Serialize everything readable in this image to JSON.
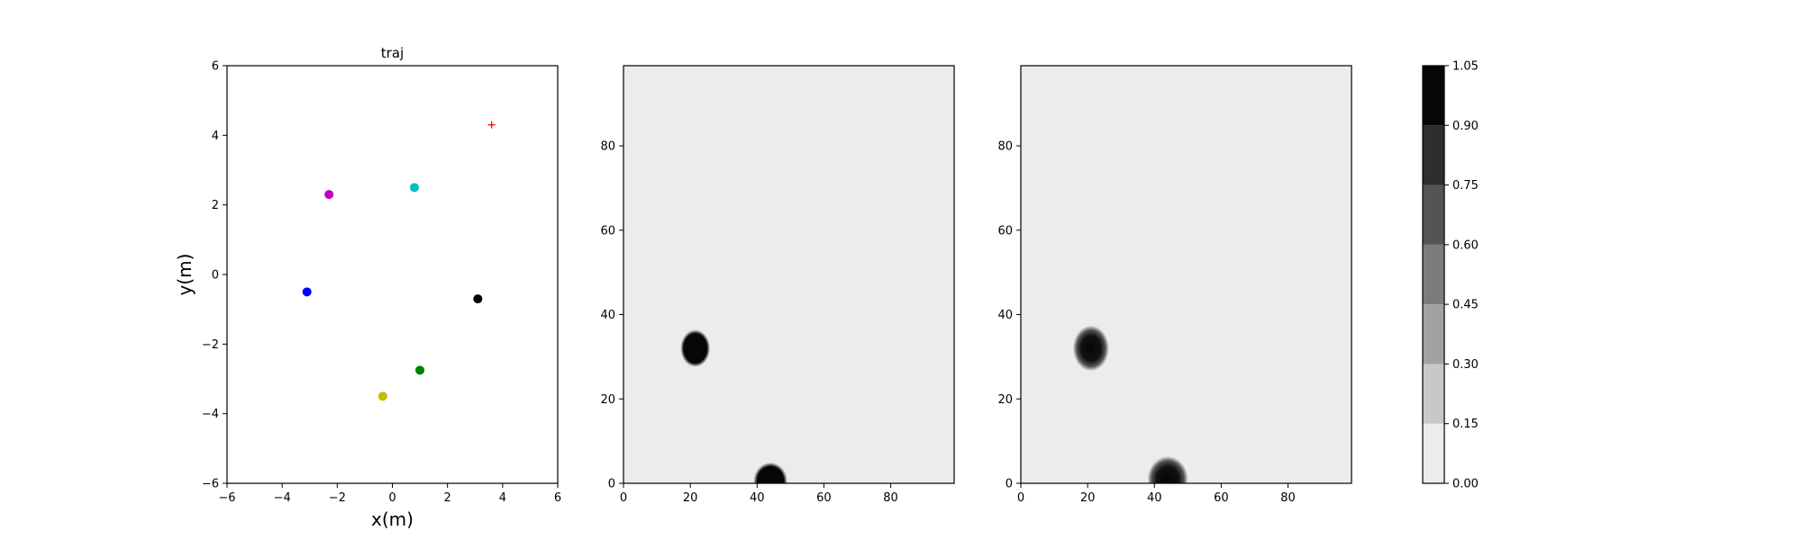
{
  "chart_data": [
    {
      "type": "scatter",
      "title": "traj",
      "xlabel": "x(m)",
      "ylabel": "y(m)",
      "xlim": [
        -6,
        6
      ],
      "ylim": [
        -6,
        6
      ],
      "xticks": [
        -6,
        -4,
        -2,
        0,
        2,
        4,
        6
      ],
      "yticks": [
        -6,
        -4,
        -2,
        0,
        2,
        4,
        6
      ],
      "xtick_labels": [
        "−6",
        "−4",
        "−2",
        "0",
        "2",
        "4",
        "6"
      ],
      "ytick_labels": [
        "−6",
        "−4",
        "−2",
        "0",
        "2",
        "4",
        "6"
      ],
      "grid": false,
      "points": [
        {
          "x": -2.3,
          "y": 2.3,
          "color": "#bf00bf",
          "marker": "circle"
        },
        {
          "x": 0.8,
          "y": 2.5,
          "color": "#00bfbf",
          "marker": "circle"
        },
        {
          "x": -3.1,
          "y": -0.5,
          "color": "#0000ff",
          "marker": "circle"
        },
        {
          "x": 3.1,
          "y": -0.7,
          "color": "#000000",
          "marker": "circle"
        },
        {
          "x": 1.0,
          "y": -2.75,
          "color": "#008000",
          "marker": "circle"
        },
        {
          "x": -0.35,
          "y": -3.5,
          "color": "#bfbf00",
          "marker": "circle"
        },
        {
          "x": 3.6,
          "y": 4.3,
          "color": "#ff0000",
          "marker": "plus"
        }
      ]
    },
    {
      "type": "heatmap",
      "title": "",
      "xlim": [
        0,
        99
      ],
      "ylim": [
        0,
        99
      ],
      "xticks": [
        0,
        20,
        40,
        60,
        80
      ],
      "yticks": [
        0,
        20,
        40,
        60,
        80
      ],
      "xtick_labels": [
        "0",
        "20",
        "40",
        "60",
        "80"
      ],
      "ytick_labels": [
        "0",
        "20",
        "40",
        "60",
        "80"
      ],
      "background_value": 0.0,
      "style": "discrete",
      "blobs": [
        {
          "cx": 21.5,
          "cy": 32,
          "rx": 3.5,
          "ry": 3.5,
          "value": 1.0
        },
        {
          "cx": 44,
          "cy": 0.5,
          "rx": 4,
          "ry": 3.5,
          "value": 1.0
        }
      ]
    },
    {
      "type": "heatmap",
      "title": "",
      "xlim": [
        0,
        99
      ],
      "ylim": [
        0,
        99
      ],
      "xticks": [
        0,
        20,
        40,
        60,
        80
      ],
      "yticks": [
        0,
        20,
        40,
        60,
        80
      ],
      "xtick_labels": [
        "0",
        "20",
        "40",
        "60",
        "80"
      ],
      "ytick_labels": [
        "0",
        "20",
        "40",
        "60",
        "80"
      ],
      "background_value": 0.0,
      "style": "smooth",
      "blobs": [
        {
          "cx": 21,
          "cy": 32,
          "rx": 4,
          "ry": 4,
          "value": 1.0
        },
        {
          "cx": 44,
          "cy": 1,
          "rx": 4.5,
          "ry": 4,
          "value": 1.0
        }
      ]
    }
  ],
  "colorbar": {
    "levels": [
      0.0,
      0.15,
      0.3,
      0.45,
      0.6,
      0.75,
      0.9,
      1.05
    ],
    "tick_labels": [
      "0.00",
      "0.15",
      "0.30",
      "0.45",
      "0.60",
      "0.75",
      "0.90",
      "1.05"
    ],
    "colors": [
      "#ececec",
      "#c8c8c8",
      "#a2a2a2",
      "#7c7c7c",
      "#545454",
      "#2e2e2e",
      "#060606"
    ]
  }
}
